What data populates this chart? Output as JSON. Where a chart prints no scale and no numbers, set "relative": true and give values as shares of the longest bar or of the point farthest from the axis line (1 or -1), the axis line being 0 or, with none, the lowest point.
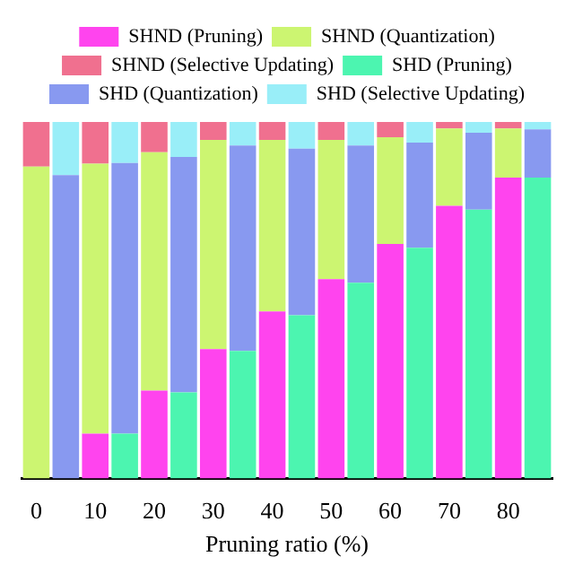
{
  "chart_data": {
    "type": "bar",
    "xlabel": "Pruning ratio (%)",
    "categories": [
      "0",
      null,
      "10",
      null,
      "20",
      null,
      "30",
      null,
      "40",
      null,
      "50",
      null,
      "60",
      null,
      "70",
      null,
      "80",
      null
    ],
    "stacked": true,
    "relative": true,
    "legend": "top",
    "grid": false,
    "series": [
      {
        "name": "SHND (Pruning)",
        "color": "#ff44ee",
        "values": [
          0,
          null,
          0.126,
          null,
          0.247,
          null,
          0.363,
          null,
          0.469,
          null,
          0.559,
          null,
          0.658,
          null,
          0.765,
          null,
          0.844,
          null
        ]
      },
      {
        "name": "SHND (Quantization)",
        "color": "#ccf571",
        "values": [
          0.875,
          null,
          0.757,
          null,
          0.668,
          null,
          0.587,
          null,
          0.481,
          null,
          0.391,
          null,
          0.299,
          null,
          0.217,
          null,
          0.138,
          null
        ]
      },
      {
        "name": "SHND (Selective Updating)",
        "color": "#f0708f",
        "values": [
          0.125,
          null,
          0.117,
          null,
          0.085,
          null,
          0.05,
          null,
          0.05,
          null,
          0.05,
          null,
          0.043,
          null,
          0.018,
          null,
          0.018,
          null
        ]
      },
      {
        "name": "SHD (Pruning)",
        "color": "#4cf5b0",
        "values": [
          null,
          0,
          null,
          0.126,
          null,
          0.242,
          null,
          0.358,
          null,
          0.458,
          null,
          0.549,
          null,
          0.647,
          null,
          0.754,
          null,
          0.844
        ]
      },
      {
        "name": "SHD (Quantization)",
        "color": "#8899f0",
        "values": [
          null,
          0.851,
          null,
          0.759,
          null,
          0.66,
          null,
          0.576,
          null,
          0.467,
          null,
          0.385,
          null,
          0.295,
          null,
          0.216,
          null,
          0.135
        ]
      },
      {
        "name": "SHD (Selective Updating)",
        "color": "#99eef8",
        "values": [
          null,
          0.149,
          null,
          0.115,
          null,
          0.098,
          null,
          0.066,
          null,
          0.075,
          null,
          0.066,
          null,
          0.058,
          null,
          0.03,
          null,
          0.021
        ]
      }
    ]
  }
}
